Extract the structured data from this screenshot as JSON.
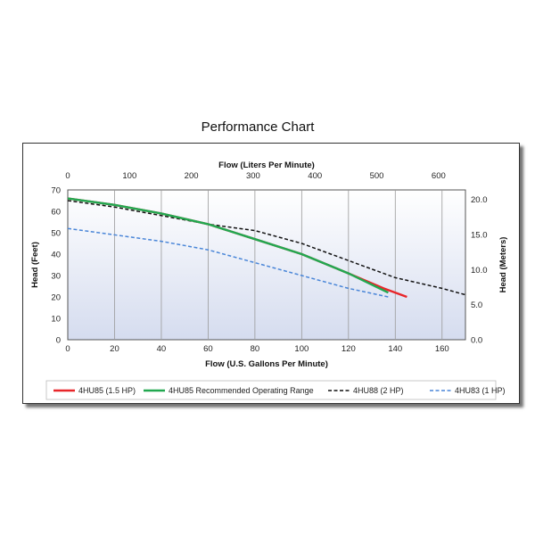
{
  "page": {
    "title": "Performance Chart"
  },
  "chart_data": {
    "type": "line",
    "xlabel": "Flow (U.S. Gallons Per Minute)",
    "ylabel": "Head (Feet)",
    "xlim": [
      0,
      170
    ],
    "ylim": [
      0,
      70
    ],
    "x_ticks": [
      0,
      20,
      40,
      60,
      80,
      100,
      120,
      140,
      160
    ],
    "y_ticks": [
      0,
      10,
      20,
      30,
      40,
      50,
      60,
      70
    ],
    "x2label": "Flow (Liters Per Minute)",
    "x2lim": [
      0,
      643.5
    ],
    "x2_ticks": [
      0,
      100,
      200,
      300,
      400,
      500,
      600
    ],
    "y2label": "Head (Meters)",
    "y2lim": [
      0,
      21.34
    ],
    "y2_ticks": [
      "0.0",
      "5.0",
      "10.0",
      "15.0",
      "20.0"
    ],
    "grid": {
      "vertical": true,
      "horizontal": false
    },
    "legend_position": "bottom",
    "series": [
      {
        "name": "4HU85 (1.5 HP)",
        "color": "#e8262a",
        "style": "solid",
        "x": [
          0,
          20,
          40,
          60,
          80,
          100,
          120,
          135,
          145
        ],
        "y": [
          66,
          63,
          59,
          54,
          47,
          40,
          31,
          24,
          20
        ]
      },
      {
        "name": "4HU85 Recommended Operating Range",
        "color": "#22a850",
        "style": "solid",
        "x": [
          0,
          20,
          40,
          60,
          80,
          100,
          120,
          137
        ],
        "y": [
          66,
          63,
          59,
          54,
          47,
          40,
          31,
          22
        ]
      },
      {
        "name": "4HU88 (2 HP)",
        "color": "#111111",
        "style": "dashed",
        "x": [
          0,
          20,
          40,
          60,
          80,
          100,
          120,
          140,
          160,
          170
        ],
        "y": [
          65,
          62,
          58,
          54,
          51,
          45,
          37,
          29,
          24,
          21
        ]
      },
      {
        "name": "4HU83 (1 HP)",
        "color": "#4a86d8",
        "style": "dashed",
        "x": [
          0,
          20,
          40,
          60,
          80,
          100,
          120,
          137
        ],
        "y": [
          52,
          49,
          46,
          42,
          36,
          30,
          24,
          20
        ]
      }
    ]
  }
}
